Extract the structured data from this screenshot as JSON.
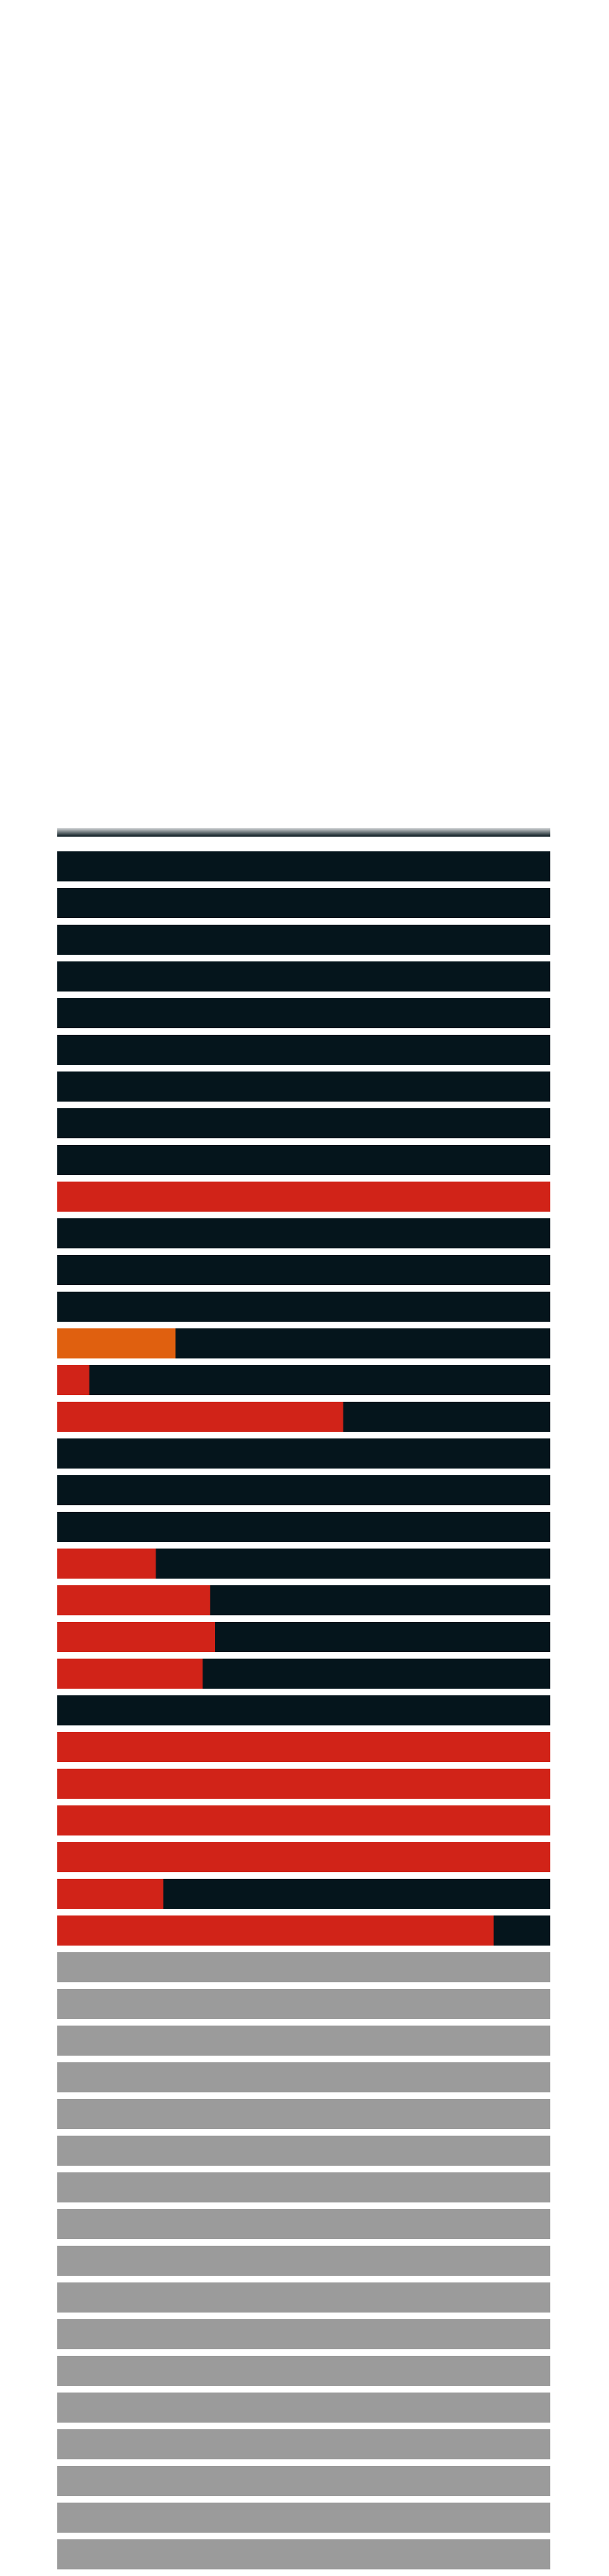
{
  "chart_data": {
    "type": "bar",
    "orientation": "horizontal",
    "stacked": true,
    "xlim": [
      0,
      1
    ],
    "grid": false,
    "legend": "none",
    "colors": {
      "base": "#05151c",
      "red": "#d12318",
      "orange": "#e0600f",
      "gray": "#9b9b9b"
    },
    "rows": [
      {
        "fill": 0,
        "color": "base",
        "base": "base"
      },
      {
        "fill": 0,
        "color": "base",
        "base": "base"
      },
      {
        "fill": 0,
        "color": "base",
        "base": "base"
      },
      {
        "fill": 0,
        "color": "base",
        "base": "base"
      },
      {
        "fill": 0,
        "color": "base",
        "base": "base"
      },
      {
        "fill": 0,
        "color": "base",
        "base": "base"
      },
      {
        "fill": 0,
        "color": "base",
        "base": "base"
      },
      {
        "fill": 0,
        "color": "base",
        "base": "base"
      },
      {
        "fill": 0,
        "color": "base",
        "base": "base"
      },
      {
        "fill": 1.0,
        "color": "red",
        "base": "base"
      },
      {
        "fill": 0,
        "color": "base",
        "base": "base"
      },
      {
        "fill": 0,
        "color": "base",
        "base": "base"
      },
      {
        "fill": 0,
        "color": "base",
        "base": "base"
      },
      {
        "fill": 0.24,
        "color": "orange",
        "base": "base"
      },
      {
        "fill": 0.065,
        "color": "red",
        "base": "base"
      },
      {
        "fill": 0.58,
        "color": "red",
        "base": "base"
      },
      {
        "fill": 0,
        "color": "base",
        "base": "base"
      },
      {
        "fill": 0,
        "color": "base",
        "base": "base"
      },
      {
        "fill": 0,
        "color": "base",
        "base": "base"
      },
      {
        "fill": 0.2,
        "color": "red",
        "base": "base"
      },
      {
        "fill": 0.31,
        "color": "red",
        "base": "base"
      },
      {
        "fill": 0.32,
        "color": "red",
        "base": "base"
      },
      {
        "fill": 0.295,
        "color": "red",
        "base": "base"
      },
      {
        "fill": 0,
        "color": "base",
        "base": "base"
      },
      {
        "fill": 1.0,
        "color": "red",
        "base": "base"
      },
      {
        "fill": 1.0,
        "color": "red",
        "base": "base"
      },
      {
        "fill": 1.0,
        "color": "red",
        "base": "base"
      },
      {
        "fill": 1.0,
        "color": "red",
        "base": "base"
      },
      {
        "fill": 0.215,
        "color": "red",
        "base": "base"
      },
      {
        "fill": 0.885,
        "color": "red",
        "base": "base"
      },
      {
        "fill": 0,
        "color": "gray",
        "base": "gray"
      },
      {
        "fill": 0,
        "color": "gray",
        "base": "gray"
      },
      {
        "fill": 0,
        "color": "gray",
        "base": "gray"
      },
      {
        "fill": 0,
        "color": "gray",
        "base": "gray"
      },
      {
        "fill": 0,
        "color": "gray",
        "base": "gray"
      },
      {
        "fill": 0,
        "color": "gray",
        "base": "gray"
      },
      {
        "fill": 0,
        "color": "gray",
        "base": "gray"
      },
      {
        "fill": 0,
        "color": "gray",
        "base": "gray"
      },
      {
        "fill": 0,
        "color": "gray",
        "base": "gray"
      },
      {
        "fill": 0,
        "color": "gray",
        "base": "gray"
      },
      {
        "fill": 0,
        "color": "gray",
        "base": "gray"
      },
      {
        "fill": 0,
        "color": "gray",
        "base": "gray"
      },
      {
        "fill": 0,
        "color": "gray",
        "base": "gray"
      },
      {
        "fill": 0,
        "color": "gray",
        "base": "gray"
      },
      {
        "fill": 0,
        "color": "gray",
        "base": "gray"
      },
      {
        "fill": 0,
        "color": "gray",
        "base": "gray"
      },
      {
        "fill": 0,
        "color": "gray",
        "base": "gray"
      },
      {
        "fill": 0,
        "color": "gray",
        "base": "gray"
      }
    ]
  }
}
